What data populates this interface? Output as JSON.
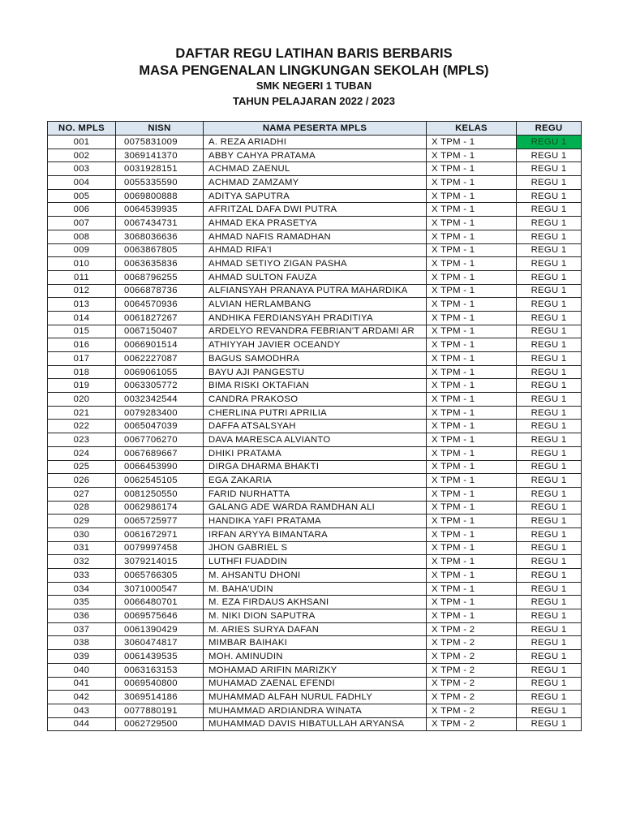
{
  "header": {
    "title": "DAFTAR REGU LATIHAN BARIS BERBARIS",
    "subtitle": "MASA PENGENALAN LINGKUNGAN SEKOLAH (MPLS)",
    "school": "SMK NEGERI 1 TUBAN",
    "year": "TAHUN PELAJARAN 2022 / 2023"
  },
  "colors": {
    "header_bg": "#dce6f1",
    "highlight": "#00b050"
  },
  "table": {
    "columns": [
      "NO. MPLS",
      "NISN",
      "NAMA PESERTA MPLS",
      "KELAS",
      "REGU"
    ],
    "highlighted_cell": "row 001, REGU",
    "rows": [
      [
        "001",
        "0075831009",
        "A. REZA ARIADHI",
        "X TPM - 1",
        "REGU 1"
      ],
      [
        "002",
        "3069141370",
        "ABBY CAHYA PRATAMA",
        "X TPM - 1",
        "REGU 1"
      ],
      [
        "003",
        "0031928151",
        "ACHMAD ZAENUL",
        "X TPM - 1",
        "REGU 1"
      ],
      [
        "004",
        "0055335590",
        "ACHMAD ZAMZAMY",
        "X TPM - 1",
        "REGU 1"
      ],
      [
        "005",
        "0069800888",
        "ADITYA SAPUTRA",
        "X TPM - 1",
        "REGU 1"
      ],
      [
        "006",
        "0064539935",
        "AFRITZAL DAFA DWI PUTRA",
        "X TPM - 1",
        "REGU 1"
      ],
      [
        "007",
        "0067434731",
        "AHMAD EKA PRASETYA",
        "X TPM - 1",
        "REGU 1"
      ],
      [
        "008",
        "3068036636",
        "AHMAD NAFIS RAMADHAN",
        "X TPM - 1",
        "REGU 1"
      ],
      [
        "009",
        "0063867805",
        "AHMAD RIFA'I",
        "X TPM - 1",
        "REGU 1"
      ],
      [
        "010",
        "0063635836",
        "AHMAD SETIYO ZIGAN PASHA",
        "X TPM - 1",
        "REGU 1"
      ],
      [
        "011",
        "0068796255",
        "AHMAD SULTON FAUZA",
        "X TPM - 1",
        "REGU 1"
      ],
      [
        "012",
        "0066878736",
        "ALFIANSYAH PRANAYA PUTRA MAHARDIKA",
        "X TPM - 1",
        "REGU 1"
      ],
      [
        "013",
        "0064570936",
        "ALVIAN HERLAMBANG",
        "X TPM - 1",
        "REGU 1"
      ],
      [
        "014",
        "0061827267",
        "ANDHIKA FERDIANSYAH PRADITIYA",
        "X TPM - 1",
        "REGU 1"
      ],
      [
        "015",
        "0067150407",
        "ARDELYO REVANDRA FEBRIAN'T ARDAMI AR",
        "X TPM - 1",
        "REGU 1"
      ],
      [
        "016",
        "0066901514",
        "ATHIYYAH JAVIER OCEANDY",
        "X TPM - 1",
        "REGU 1"
      ],
      [
        "017",
        "0062227087",
        "BAGUS SAMODHRA",
        "X TPM - 1",
        "REGU 1"
      ],
      [
        "018",
        "0069061055",
        "BAYU AJI PANGESTU",
        "X TPM - 1",
        "REGU 1"
      ],
      [
        "019",
        "0063305772",
        "BIMA RISKI OKTAFIAN",
        "X TPM - 1",
        "REGU 1"
      ],
      [
        "020",
        "0032342544",
        "CANDRA PRAKOSO",
        "X TPM - 1",
        "REGU 1"
      ],
      [
        "021",
        "0079283400",
        "CHERLINA PUTRI APRILIA",
        "X TPM - 1",
        "REGU 1"
      ],
      [
        "022",
        "0065047039",
        "DAFFA ATSALSYAH",
        "X TPM - 1",
        "REGU 1"
      ],
      [
        "023",
        "0067706270",
        "DAVA MARESCA ALVIANTO",
        "X TPM - 1",
        "REGU 1"
      ],
      [
        "024",
        "0067689667",
        "DHIKI PRATAMA",
        "X TPM - 1",
        "REGU 1"
      ],
      [
        "025",
        "0066453990",
        "DIRGA DHARMA BHAKTI",
        "X TPM - 1",
        "REGU 1"
      ],
      [
        "026",
        "0062545105",
        "EGA ZAKARIA",
        "X TPM - 1",
        "REGU 1"
      ],
      [
        "027",
        "0081250550",
        "FARID NURHATTA",
        "X TPM - 1",
        "REGU 1"
      ],
      [
        "028",
        "0062986174",
        "GALANG ADE WARDA RAMDHAN ALI",
        "X TPM - 1",
        "REGU 1"
      ],
      [
        "029",
        "0065725977",
        "HANDIKA YAFI PRATAMA",
        "X TPM - 1",
        "REGU 1"
      ],
      [
        "030",
        "0061672971",
        "IRFAN ARYYA BIMANTARA",
        "X TPM - 1",
        "REGU 1"
      ],
      [
        "031",
        "0079997458",
        "JHON GABRIEL S",
        "X TPM - 1",
        "REGU 1"
      ],
      [
        "032",
        "3079214015",
        "LUTHFI FUADDIN",
        "X TPM - 1",
        "REGU 1"
      ],
      [
        "033",
        "0065766305",
        "M. AHSANTU DHONI",
        "X TPM - 1",
        "REGU 1"
      ],
      [
        "034",
        "3071000547",
        "M. BAHA'UDIN",
        "X TPM - 1",
        "REGU 1"
      ],
      [
        "035",
        "0066480701",
        "M. EZA FIRDAUS AKHSANI",
        "X TPM - 1",
        "REGU 1"
      ],
      [
        "036",
        "0069575646",
        "M. NIKI DION SAPUTRA",
        "X TPM - 1",
        "REGU 1"
      ],
      [
        "037",
        "0061390429",
        "M. ARIES SURYA DAFAN",
        "X TPM - 2",
        "REGU 1"
      ],
      [
        "038",
        "3060474817",
        "MIMBAR BAIHAKI",
        "X TPM - 2",
        "REGU 1"
      ],
      [
        "039",
        "0061439535",
        "MOH. AMINUDIN",
        "X TPM - 2",
        "REGU 1"
      ],
      [
        "040",
        "0063163153",
        "MOHAMAD ARIFIN MARIZKY",
        "X TPM - 2",
        "REGU 1"
      ],
      [
        "041",
        "0069540800",
        "MUHAMAD ZAENAL EFENDI",
        "X TPM - 2",
        "REGU 1"
      ],
      [
        "042",
        "3069514186",
        "MUHAMMAD ALFAH NURUL FADHLY",
        "X TPM - 2",
        "REGU 1"
      ],
      [
        "043",
        "0077880191",
        "MUHAMMAD ARDIANDRA WINATA",
        "X TPM - 2",
        "REGU 1"
      ],
      [
        "044",
        "0062729500",
        "MUHAMMAD DAVIS HIBATULLAH ARYANSA",
        "X TPM - 2",
        "REGU 1"
      ]
    ]
  }
}
